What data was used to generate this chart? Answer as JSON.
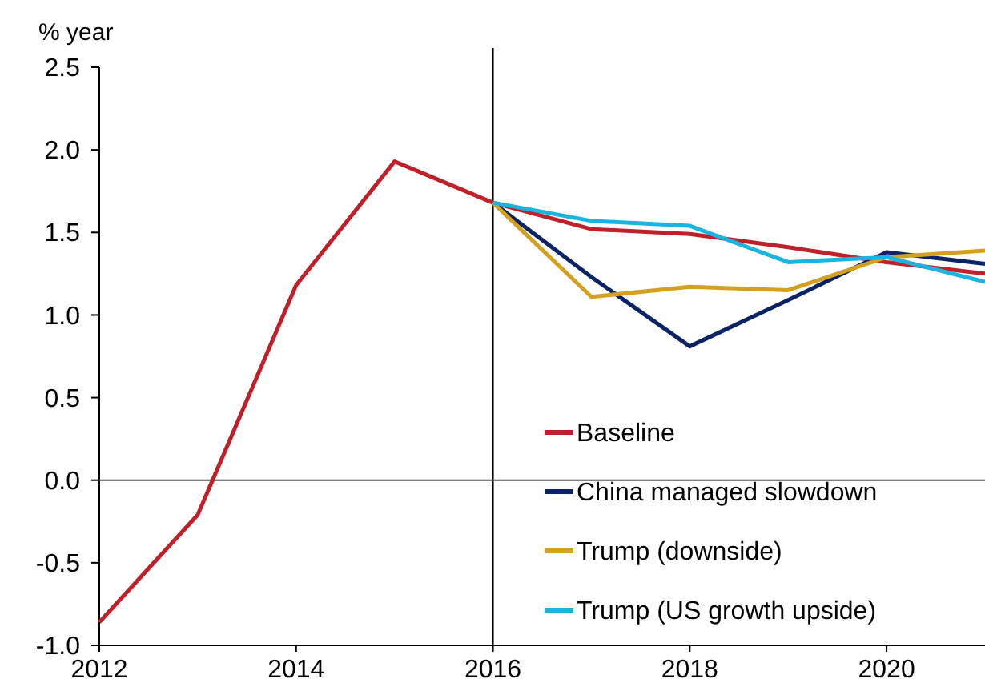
{
  "chart_data": {
    "type": "line",
    "ylabel": "% year",
    "x": [
      2012,
      2013,
      2014,
      2015,
      2016,
      2017,
      2018,
      2019,
      2020,
      2021
    ],
    "series": [
      {
        "name": "Baseline",
        "color": "#c0202a",
        "values": [
          -0.86,
          -0.21,
          1.18,
          1.93,
          1.68,
          1.52,
          1.49,
          1.41,
          1.32,
          1.25
        ]
      },
      {
        "name": "China managed slowdown",
        "color": "#0b2265",
        "values": [
          null,
          null,
          null,
          null,
          1.68,
          1.23,
          0.81,
          1.09,
          1.38,
          1.31
        ]
      },
      {
        "name": "Trump (downside)",
        "color": "#d4a020",
        "values": [
          null,
          null,
          null,
          null,
          1.68,
          1.11,
          1.17,
          1.15,
          1.35,
          1.39
        ]
      },
      {
        "name": "Trump (US growth upside)",
        "color": "#1ab4e0",
        "values": [
          null,
          null,
          null,
          null,
          1.68,
          1.57,
          1.54,
          1.32,
          1.35,
          1.2
        ]
      }
    ],
    "xlim": [
      2012,
      2021
    ],
    "xticks": [
      2012,
      2014,
      2016,
      2018,
      2020
    ],
    "ylim": [
      -1,
      2.5
    ],
    "yticks": [
      {
        "value": -1,
        "label": "-1.0"
      },
      {
        "value": -0.5,
        "label": "-0.5"
      },
      {
        "value": 0,
        "label": "0.0"
      },
      {
        "value": 0.5,
        "label": "0.5"
      },
      {
        "value": 1,
        "label": "1.0"
      },
      {
        "value": 1.5,
        "label": "1.5"
      },
      {
        "value": 2,
        "label": "2.0"
      },
      {
        "value": 2.5,
        "label": "2.5"
      }
    ],
    "ref_lines": [
      {
        "axis": "x",
        "value": 2016,
        "color": "#000000"
      },
      {
        "axis": "y",
        "value": 0,
        "color": "#555555"
      }
    ],
    "grid": false,
    "legend": "bottom right",
    "marker": "none",
    "line_style": "solid"
  }
}
